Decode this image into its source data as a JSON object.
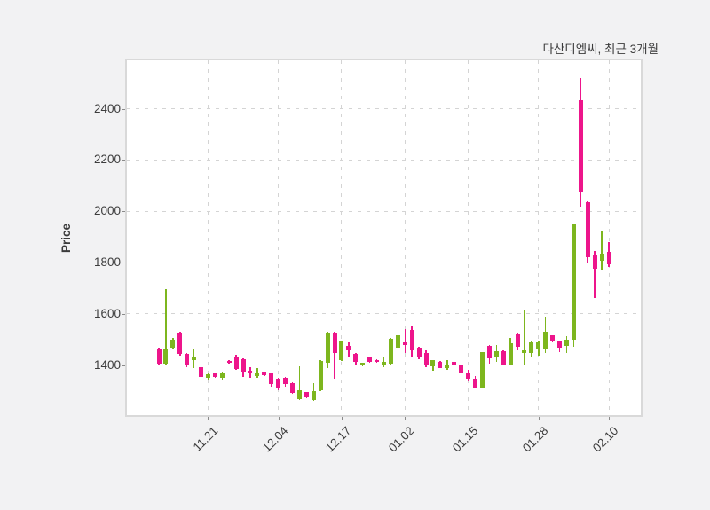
{
  "figure": {
    "title": "다산디엠씨, 최근 3개월",
    "background_color": "#f2f2f3",
    "plot_background_color": "#ffffff",
    "spine_color": "#d9d9d9",
    "grid_color": "#d4d4d4",
    "text_color": "#3c3c3c"
  },
  "chart_data": {
    "type": "candlestick",
    "title": "다산디엠씨, 최근 3개월",
    "xlabel": "",
    "ylabel": "Price",
    "grid": true,
    "ylim": [
      1205,
      2589
    ],
    "y_ticks": [
      1400,
      1600,
      1800,
      2000,
      2200,
      2400
    ],
    "x_tick_labels": [
      "11.21",
      "12.04",
      "12.17",
      "01.02",
      "01.15",
      "01.28",
      "02.10"
    ],
    "x_tick_indices": [
      7,
      17,
      26,
      35,
      44,
      54,
      64
    ],
    "up_color": "#7db61e",
    "down_color": "#ed158b",
    "candles_format": [
      "open",
      "high",
      "low",
      "close"
    ],
    "candles": [
      [
        1460,
        1468,
        1398,
        1405
      ],
      [
        1405,
        1695,
        1400,
        1466
      ],
      [
        1468,
        1507,
        1460,
        1498
      ],
      [
        1526,
        1530,
        1436,
        1445
      ],
      [
        1445,
        1448,
        1391,
        1401
      ],
      [
        1420,
        1462,
        1390,
        1434
      ],
      [
        1392,
        1396,
        1348,
        1354
      ],
      [
        1350,
        1368,
        1344,
        1363
      ],
      [
        1368,
        1370,
        1350,
        1353
      ],
      [
        1350,
        1375,
        1343,
        1372
      ],
      [
        1416,
        1418,
        1404,
        1408
      ],
      [
        1435,
        1440,
        1380,
        1385
      ],
      [
        1424,
        1428,
        1355,
        1374
      ],
      [
        1378,
        1393,
        1350,
        1366
      ],
      [
        1358,
        1389,
        1350,
        1370
      ],
      [
        1373,
        1376,
        1357,
        1359
      ],
      [
        1367,
        1370,
        1315,
        1326
      ],
      [
        1348,
        1350,
        1302,
        1313
      ],
      [
        1350,
        1353,
        1315,
        1325
      ],
      [
        1331,
        1333,
        1288,
        1291
      ],
      [
        1268,
        1395,
        1263,
        1302
      ],
      [
        1294,
        1296,
        1270,
        1273
      ],
      [
        1264,
        1330,
        1262,
        1300
      ],
      [
        1302,
        1420,
        1300,
        1416
      ],
      [
        1409,
        1529,
        1389,
        1525
      ],
      [
        1527,
        1530,
        1346,
        1446
      ],
      [
        1418,
        1495,
        1416,
        1493
      ],
      [
        1476,
        1489,
        1430,
        1458
      ],
      [
        1443,
        1446,
        1400,
        1412
      ],
      [
        1400,
        1410,
        1396,
        1408
      ],
      [
        1429,
        1432,
        1410,
        1412
      ],
      [
        1420,
        1423,
        1409,
        1411
      ],
      [
        1400,
        1431,
        1393,
        1412
      ],
      [
        1404,
        1506,
        1402,
        1504
      ],
      [
        1469,
        1550,
        1400,
        1515
      ],
      [
        1489,
        1542,
        1446,
        1477
      ],
      [
        1538,
        1551,
        1435,
        1458
      ],
      [
        1469,
        1471,
        1424,
        1435
      ],
      [
        1446,
        1458,
        1393,
        1400
      ],
      [
        1395,
        1420,
        1377,
        1418
      ],
      [
        1412,
        1415,
        1387,
        1389
      ],
      [
        1389,
        1418,
        1381,
        1400
      ],
      [
        1412,
        1414,
        1383,
        1400
      ],
      [
        1400,
        1402,
        1360,
        1371
      ],
      [
        1371,
        1383,
        1337,
        1348
      ],
      [
        1348,
        1357,
        1309,
        1311
      ],
      [
        1310,
        1452,
        1308,
        1450
      ],
      [
        1475,
        1478,
        1407,
        1427
      ],
      [
        1430,
        1478,
        1413,
        1455
      ],
      [
        1455,
        1457,
        1398,
        1401
      ],
      [
        1402,
        1505,
        1400,
        1485
      ],
      [
        1520,
        1523,
        1458,
        1470
      ],
      [
        1448,
        1612,
        1401,
        1458
      ],
      [
        1447,
        1494,
        1430,
        1490
      ],
      [
        1460,
        1492,
        1437,
        1487
      ],
      [
        1465,
        1590,
        1446,
        1530
      ],
      [
        1515,
        1518,
        1490,
        1495
      ],
      [
        1495,
        1497,
        1452,
        1469
      ],
      [
        1475,
        1512,
        1446,
        1498
      ],
      [
        1498,
        1950,
        1470,
        1948
      ],
      [
        2435,
        2519,
        2017,
        2075
      ],
      [
        2035,
        2040,
        1799,
        1822
      ],
      [
        1828,
        1844,
        1661,
        1777
      ],
      [
        1807,
        1925,
        1771,
        1835
      ],
      [
        1840,
        1879,
        1782,
        1794
      ]
    ]
  }
}
